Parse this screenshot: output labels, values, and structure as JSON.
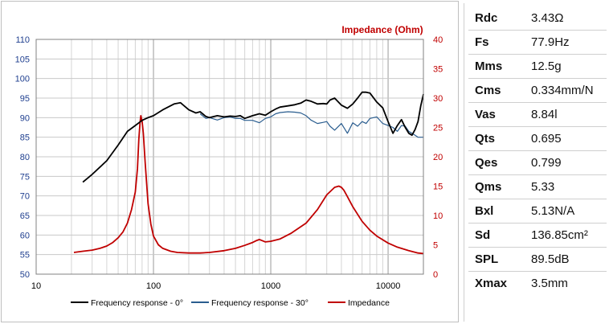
{
  "chart_data": {
    "type": "line",
    "title": "",
    "right_axis_title": "Impedance (Ohm)",
    "x_scale": "log",
    "xlim": [
      10,
      20000
    ],
    "ylim_left": [
      50,
      110
    ],
    "ylim_right": [
      0,
      40
    ],
    "x_ticks": [
      "10",
      "100",
      "1000",
      "10000"
    ],
    "y_ticks_left": [
      "50",
      "55",
      "60",
      "65",
      "70",
      "75",
      "80",
      "85",
      "90",
      "95",
      "100",
      "105",
      "110"
    ],
    "y_ticks_right": [
      "0",
      "5",
      "10",
      "15",
      "20",
      "25",
      "30",
      "35",
      "40"
    ],
    "grid": true,
    "legend_position": "bottom",
    "series": [
      {
        "name": "Frequency response - 0°",
        "axis": "left",
        "color": "#000000",
        "x": [
          25,
          30,
          40,
          50,
          60,
          70,
          80,
          90,
          100,
          120,
          150,
          170,
          200,
          230,
          250,
          280,
          300,
          350,
          400,
          450,
          500,
          550,
          600,
          700,
          800,
          900,
          1000,
          1100,
          1200,
          1400,
          1600,
          1800,
          2000,
          2200,
          2500,
          2800,
          3000,
          3200,
          3500,
          4000,
          4500,
          5000,
          5500,
          6000,
          6500,
          7000,
          8000,
          9000,
          10000,
          11000,
          12000,
          13000,
          14000,
          15000,
          16000,
          17000,
          18000,
          19000,
          20000
        ],
        "values": [
          73.5,
          75.5,
          79,
          83,
          86.5,
          88,
          89.3,
          90,
          90.5,
          92,
          93.5,
          93.8,
          92,
          91.2,
          91.5,
          90.3,
          90,
          90.5,
          90.2,
          90.4,
          90.3,
          90.5,
          89.8,
          90.5,
          91,
          90.6,
          91.5,
          92.2,
          92.7,
          93,
          93.3,
          93.7,
          94.5,
          94.2,
          93.5,
          93.6,
          93.5,
          94.5,
          95,
          93.2,
          92.4,
          93.5,
          95,
          96.5,
          96.5,
          96.3,
          94,
          92.5,
          89,
          86,
          88,
          89.5,
          87.5,
          86,
          85.5,
          87,
          89,
          93,
          96
        ]
      },
      {
        "name": "Frequency response - 30°",
        "axis": "left",
        "color": "#2a5d8f",
        "x": [
          250,
          280,
          300,
          350,
          400,
          450,
          500,
          550,
          600,
          700,
          800,
          900,
          1000,
          1100,
          1200,
          1400,
          1600,
          1800,
          2000,
          2200,
          2500,
          2800,
          3000,
          3200,
          3500,
          4000,
          4500,
          5000,
          5500,
          6000,
          6500,
          7000,
          8000,
          9000,
          10000,
          11000,
          12000,
          13000,
          14000,
          15000,
          16000,
          17000,
          18000,
          19000,
          20000
        ],
        "values": [
          91,
          89.8,
          90,
          89.4,
          90,
          90.2,
          89.8,
          89.8,
          89.3,
          89.3,
          88.7,
          89.8,
          90.2,
          91,
          91.3,
          91.5,
          91.4,
          91.2,
          90.5,
          89.4,
          88.5,
          88.8,
          89,
          87.8,
          86.8,
          88.5,
          86,
          88.7,
          87.8,
          89,
          88.5,
          89.8,
          90.2,
          88.5,
          88,
          87.5,
          86.5,
          88,
          87.8,
          86.5,
          86,
          85.5,
          85,
          85,
          85
        ]
      },
      {
        "name": "Impedance",
        "axis": "right",
        "color": "#c00000",
        "x": [
          21,
          25,
          30,
          35,
          40,
          45,
          50,
          55,
          60,
          65,
          70,
          73,
          75,
          77,
          78,
          80,
          82,
          85,
          90,
          95,
          100,
          110,
          120,
          140,
          160,
          200,
          250,
          300,
          400,
          500,
          600,
          700,
          750,
          800,
          850,
          900,
          1000,
          1200,
          1500,
          2000,
          2500,
          3000,
          3500,
          3800,
          4000,
          4200,
          4500,
          5000,
          6000,
          7000,
          8000,
          10000,
          12000,
          15000,
          18000,
          20000
        ],
        "values": [
          3.7,
          3.9,
          4.1,
          4.4,
          4.8,
          5.4,
          6.2,
          7.2,
          8.7,
          11,
          14,
          18,
          23,
          26,
          27,
          26,
          24,
          19,
          12,
          8.5,
          6.5,
          5,
          4.4,
          3.9,
          3.7,
          3.6,
          3.6,
          3.7,
          4,
          4.4,
          4.9,
          5.4,
          5.7,
          5.9,
          5.7,
          5.5,
          5.6,
          6,
          7,
          8.7,
          11,
          13.5,
          14.8,
          15,
          14.8,
          14.3,
          13.2,
          11.5,
          9,
          7.5,
          6.5,
          5.3,
          4.6,
          4,
          3.6,
          3.5
        ]
      }
    ]
  },
  "specs": [
    {
      "key": "Rdc",
      "value": "3.43Ω"
    },
    {
      "key": "Fs",
      "value": "77.9Hz"
    },
    {
      "key": "Mms",
      "value": "12.5g"
    },
    {
      "key": "Cms",
      "value": "0.334mm/N"
    },
    {
      "key": "Vas",
      "value": "8.84l"
    },
    {
      "key": "Qts",
      "value": "0.695"
    },
    {
      "key": "Qes",
      "value": "0.799"
    },
    {
      "key": "Qms",
      "value": "5.33"
    },
    {
      "key": "Bxl",
      "value": "5.13N/A"
    },
    {
      "key": "Sd",
      "value": "136.85cm²"
    },
    {
      "key": "SPL",
      "value": "89.5dB"
    },
    {
      "key": "Xmax",
      "value": "3.5mm"
    }
  ]
}
